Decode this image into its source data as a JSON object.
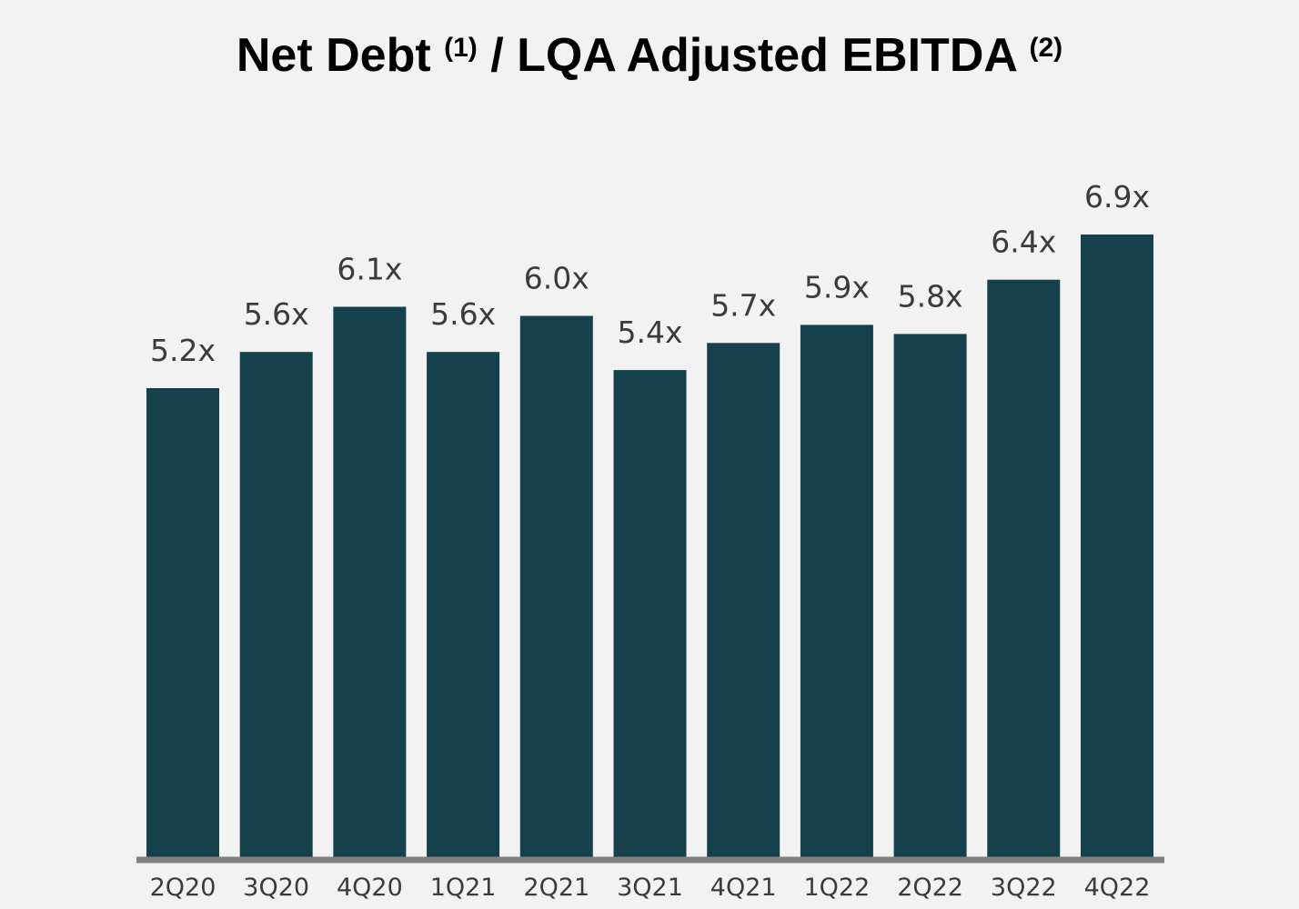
{
  "title": {
    "part1": "Net Debt ",
    "sup1": "(1)",
    "part2": " / LQA Adjusted EBITDA ",
    "sup2": "(2)"
  },
  "colors": {
    "bar": "#14414b",
    "axis": "#7f7f7f",
    "background": "#f2f2f2",
    "label": "#3b3b3b"
  },
  "chart_data": {
    "type": "bar",
    "title": "Net Debt (1) / LQA Adjusted EBITDA (2)",
    "categories": [
      "2Q20",
      "3Q20",
      "4Q20",
      "1Q21",
      "2Q21",
      "3Q21",
      "4Q21",
      "1Q22",
      "2Q22",
      "3Q22",
      "4Q22"
    ],
    "values": [
      5.2,
      5.6,
      6.1,
      5.6,
      6.0,
      5.4,
      5.7,
      5.9,
      5.8,
      6.4,
      6.9
    ],
    "data_labels": [
      "5.2x",
      "5.6x",
      "6.1x",
      "5.6x",
      "6.0x",
      "5.4x",
      "5.7x",
      "5.9x",
      "5.8x",
      "6.4x",
      "6.9x"
    ],
    "xlabel": "",
    "ylabel": "",
    "ylim": [
      0,
      6.9
    ],
    "grid": false,
    "legend": "none"
  }
}
